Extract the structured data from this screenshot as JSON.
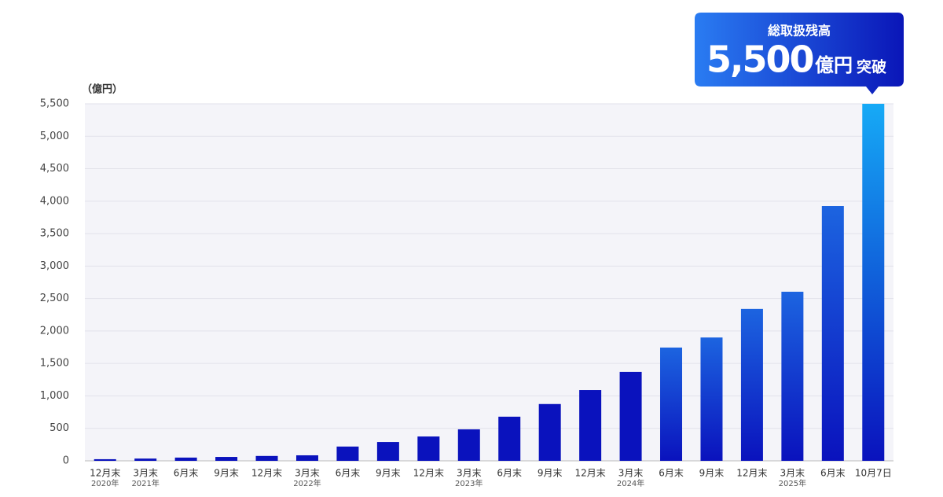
{
  "chart_data": {
    "type": "bar",
    "y_unit_label": "（億円）",
    "categories": [
      "12月末",
      "3月末",
      "6月末",
      "9月末",
      "12月末",
      "3月末",
      "6月末",
      "9月末",
      "12月末",
      "3月末",
      "6月末",
      "9月末",
      "12月末",
      "3月末",
      "6月末",
      "9月末",
      "12月末",
      "3月末",
      "6月末",
      "10月7日"
    ],
    "category_years": [
      "2020年",
      "2021年",
      null,
      null,
      null,
      "2022年",
      null,
      null,
      null,
      "2023年",
      null,
      null,
      null,
      "2024年",
      null,
      null,
      null,
      "2025年",
      null,
      null
    ],
    "values": [
      25,
      35,
      50,
      60,
      75,
      85,
      220,
      290,
      375,
      485,
      680,
      875,
      1090,
      1370,
      1745,
      1900,
      2340,
      2605,
      3925,
      5500
    ],
    "color": "#0a12bd",
    "top_color": "#1c64e0",
    "highlight_color": "#16aaf6",
    "ylim": [
      0,
      5500
    ],
    "yticks": [
      0,
      500,
      {
        "value": 1000,
        "label": "1,000"
      },
      {
        "value": 1500,
        "label": "1,500"
      },
      {
        "value": 2000,
        "label": "2,000"
      },
      {
        "value": 2500,
        "label": "2,500"
      },
      {
        "value": 3000,
        "label": "3,000"
      },
      {
        "value": 3500,
        "label": "3,500"
      },
      {
        "value": 4000,
        "label": "4,000"
      },
      {
        "value": 4500,
        "label": "4,500"
      },
      {
        "value": 5000,
        "label": "5,000"
      },
      {
        "value": 5500,
        "label": "5,500"
      }
    ],
    "grid": true,
    "callout": {
      "title": "総取扱残高",
      "value": "5,500",
      "unit": "億円",
      "suffix": "突破"
    }
  }
}
